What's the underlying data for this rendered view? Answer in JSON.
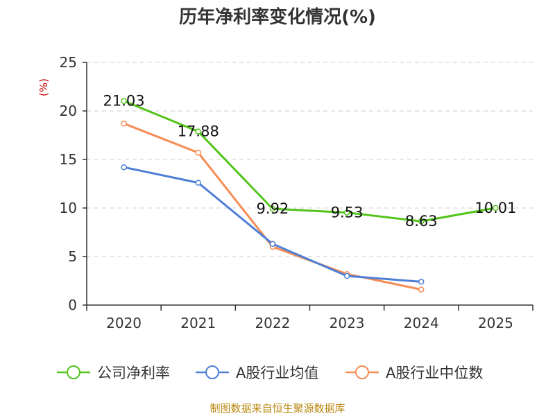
{
  "chart_data": {
    "type": "line",
    "title": "历年净利率变化情况(%)",
    "ylabel": "(%)",
    "xlabel": "",
    "categories": [
      "2020",
      "2021",
      "2022",
      "2023",
      "2024",
      "2025"
    ],
    "ylim": [
      0,
      25
    ],
    "yticks": [
      0,
      5,
      10,
      15,
      20,
      25
    ],
    "grid": true,
    "legend_position": "bottom",
    "series": [
      {
        "name": "公司净利率",
        "color": "#52c41a",
        "values": [
          21.03,
          17.88,
          9.92,
          9.53,
          8.63,
          10.01
        ],
        "labels": [
          "21.03",
          "17.88",
          "9.92",
          "9.53",
          "8.63",
          "10.01"
        ]
      },
      {
        "name": "A股行业均值",
        "color": "#4e7fd6",
        "values": [
          14.2,
          12.6,
          6.3,
          3.0,
          2.4,
          null
        ]
      },
      {
        "name": "A股行业中位数",
        "color": "#f78c55",
        "values": [
          18.7,
          15.7,
          6.0,
          3.2,
          1.6,
          null
        ]
      }
    ]
  },
  "source": "制图数据来自恒生聚源数据库"
}
